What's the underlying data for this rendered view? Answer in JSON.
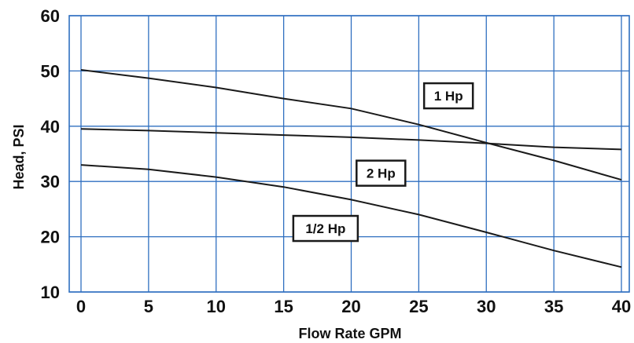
{
  "chart_data": {
    "type": "line",
    "xlabel": "Flow Rate GPM",
    "ylabel": "Head, PSI",
    "xlim": [
      0,
      40
    ],
    "ylim": [
      10,
      60
    ],
    "x_ticks": [
      "0",
      "5",
      "10",
      "15",
      "20",
      "25",
      "30",
      "35",
      "40"
    ],
    "y_ticks": [
      "10",
      "20",
      "30",
      "40",
      "50",
      "60"
    ],
    "grid": true,
    "grid_color": "#2f6fc0",
    "line_color": "#1a1a1a",
    "series": [
      {
        "name": "1 Hp",
        "x": [
          0,
          5,
          10,
          15,
          20,
          25,
          30,
          35,
          40
        ],
        "y": [
          50.2,
          48.7,
          47.0,
          45.0,
          43.2,
          40.3,
          37.0,
          33.8,
          30.3
        ]
      },
      {
        "name": "2 Hp",
        "x": [
          0,
          5,
          10,
          15,
          20,
          25,
          30,
          35,
          40
        ],
        "y": [
          39.5,
          39.2,
          38.8,
          38.4,
          38.0,
          37.5,
          36.9,
          36.2,
          35.8
        ]
      },
      {
        "name": "1/2 Hp",
        "x": [
          0,
          5,
          10,
          15,
          20,
          25,
          30,
          35,
          40
        ],
        "y": [
          33.0,
          32.2,
          30.8,
          29.0,
          26.7,
          24.0,
          20.8,
          17.5,
          14.5
        ]
      }
    ],
    "annotations": [
      {
        "text": "1 Hp",
        "x": 27.2,
        "y": 45.5
      },
      {
        "text": "2 Hp",
        "x": 22.2,
        "y": 31.5
      },
      {
        "text": "1/2 Hp",
        "x": 18.1,
        "y": 21.5
      }
    ]
  }
}
